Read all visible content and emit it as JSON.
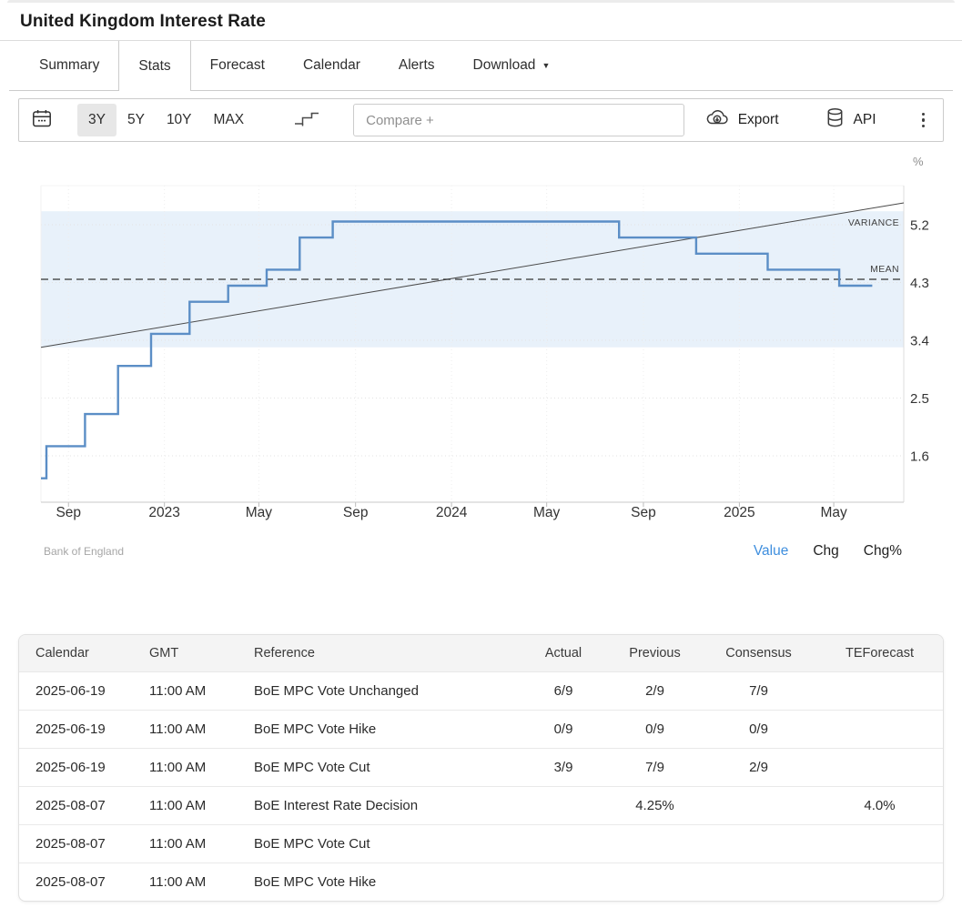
{
  "header": {
    "title": "United Kingdom Interest Rate"
  },
  "icons": {
    "caret_down": "▼"
  },
  "colors": {
    "accent_blue": "#3e8ede",
    "line_blue": "#5b8ec6",
    "band_blue": "#e8f1fa",
    "active_range_bg": "#e7e7e7"
  },
  "tabs": {
    "items": [
      {
        "label": "Summary",
        "active": false,
        "has_caret": false
      },
      {
        "label": "Stats",
        "active": true,
        "has_caret": false
      },
      {
        "label": "Forecast",
        "active": false,
        "has_caret": false
      },
      {
        "label": "Calendar",
        "active": false,
        "has_caret": false
      },
      {
        "label": "Alerts",
        "active": false,
        "has_caret": false
      },
      {
        "label": "Download",
        "active": false,
        "has_caret": true
      }
    ]
  },
  "toolbar": {
    "ranges": [
      {
        "label": "3Y",
        "active": true
      },
      {
        "label": "5Y",
        "active": false
      },
      {
        "label": "10Y",
        "active": false
      },
      {
        "label": "MAX",
        "active": false
      }
    ],
    "compare_placeholder": "Compare +",
    "export_label": "Export",
    "api_label": "API"
  },
  "chart_data": {
    "type": "line",
    "line_style": "step-after",
    "title": "United Kingdom Interest Rate",
    "ylabel": "%",
    "source": "Bank of England",
    "grid": true,
    "x_domain": [
      "2022-07-28",
      "2025-07-29"
    ],
    "ylim": [
      0.9,
      5.8
    ],
    "x_ticks": [
      {
        "date": "2022-09-01",
        "label": "Sep"
      },
      {
        "date": "2023-01-01",
        "label": "2023"
      },
      {
        "date": "2023-05-01",
        "label": "May"
      },
      {
        "date": "2023-09-01",
        "label": "Sep"
      },
      {
        "date": "2024-01-01",
        "label": "2024"
      },
      {
        "date": "2024-05-01",
        "label": "May"
      },
      {
        "date": "2024-09-01",
        "label": "Sep"
      },
      {
        "date": "2025-01-01",
        "label": "2025"
      },
      {
        "date": "2025-05-01",
        "label": "May"
      }
    ],
    "y_ticks": [
      5.2,
      4.3,
      3.4,
      2.5,
      1.6
    ],
    "series": [
      {
        "name": "United Kingdom Interest Rate",
        "color": "#5b8ec6",
        "points": [
          [
            "2022-07-28",
            1.25
          ],
          [
            "2022-08-04",
            1.75
          ],
          [
            "2022-09-22",
            2.25
          ],
          [
            "2022-11-03",
            3.0
          ],
          [
            "2022-12-15",
            3.5
          ],
          [
            "2023-02-02",
            4.0
          ],
          [
            "2023-03-23",
            4.25
          ],
          [
            "2023-05-11",
            4.5
          ],
          [
            "2023-06-22",
            5.0
          ],
          [
            "2023-08-03",
            5.25
          ],
          [
            "2024-08-01",
            5.0
          ],
          [
            "2024-11-07",
            4.75
          ],
          [
            "2025-02-06",
            4.5
          ],
          [
            "2025-05-08",
            4.25
          ],
          [
            "2025-06-19",
            4.25
          ]
        ]
      }
    ],
    "overlays": {
      "mean": {
        "label": "MEAN",
        "value": 4.35
      },
      "variance_band": {
        "low": 3.29,
        "high": 5.41
      },
      "trend_line": {
        "label": "VARIANCE",
        "start_value": 3.29,
        "end_value": 5.54
      }
    },
    "footer_links": [
      {
        "label": "Value",
        "active": true
      },
      {
        "label": "Chg",
        "active": false
      },
      {
        "label": "Chg%",
        "active": false
      }
    ]
  },
  "table": {
    "columns": [
      "Calendar",
      "GMT",
      "Reference",
      "Actual",
      "Previous",
      "Consensus",
      "TEForecast"
    ],
    "rows": [
      [
        "2025-06-19",
        "11:00 AM",
        "BoE MPC Vote Unchanged",
        "6/9",
        "2/9",
        "7/9",
        ""
      ],
      [
        "2025-06-19",
        "11:00 AM",
        "BoE MPC Vote Hike",
        "0/9",
        "0/9",
        "0/9",
        ""
      ],
      [
        "2025-06-19",
        "11:00 AM",
        "BoE MPC Vote Cut",
        "3/9",
        "7/9",
        "2/9",
        ""
      ],
      [
        "2025-08-07",
        "11:00 AM",
        "BoE Interest Rate Decision",
        "",
        "4.25%",
        "",
        "4.0%"
      ],
      [
        "2025-08-07",
        "11:00 AM",
        "BoE MPC Vote Cut",
        "",
        "",
        "",
        ""
      ],
      [
        "2025-08-07",
        "11:00 AM",
        "BoE MPC Vote Hike",
        "",
        "",
        "",
        ""
      ]
    ]
  }
}
